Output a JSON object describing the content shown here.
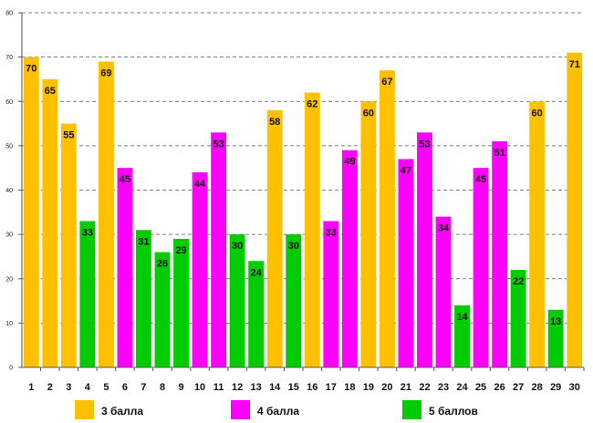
{
  "chart_data": {
    "type": "bar",
    "categories": [
      "1",
      "2",
      "3",
      "4",
      "5",
      "6",
      "7",
      "8",
      "9",
      "10",
      "11",
      "12",
      "13",
      "14",
      "15",
      "16",
      "17",
      "18",
      "19",
      "20",
      "21",
      "22",
      "23",
      "24",
      "25",
      "26",
      "27",
      "28",
      "29",
      "30"
    ],
    "values": [
      70,
      65,
      55,
      33,
      69,
      45,
      31,
      26,
      29,
      44,
      53,
      30,
      24,
      58,
      30,
      62,
      33,
      49,
      60,
      67,
      47,
      53,
      34,
      14,
      45,
      51,
      22,
      60,
      13,
      71
    ],
    "groups": [
      0,
      0,
      0,
      2,
      0,
      1,
      2,
      2,
      2,
      1,
      1,
      2,
      2,
      0,
      2,
      0,
      1,
      1,
      0,
      0,
      1,
      1,
      1,
      2,
      1,
      1,
      2,
      0,
      2,
      0
    ],
    "legend": [
      {
        "name": "3 балла",
        "color": "#FFC000"
      },
      {
        "name": "4 балла",
        "color": "#FF00FF"
      },
      {
        "name": "5 баллов",
        "color": "#00CC00"
      }
    ],
    "ylim": [
      0,
      80
    ],
    "yticks": [
      0,
      10,
      20,
      30,
      40,
      50,
      60,
      70,
      80
    ],
    "grid": true,
    "grid_style": "dashed",
    "data_labels": true,
    "legend_placement": "bottom",
    "title": "",
    "xlabel": "",
    "ylabel": ""
  }
}
